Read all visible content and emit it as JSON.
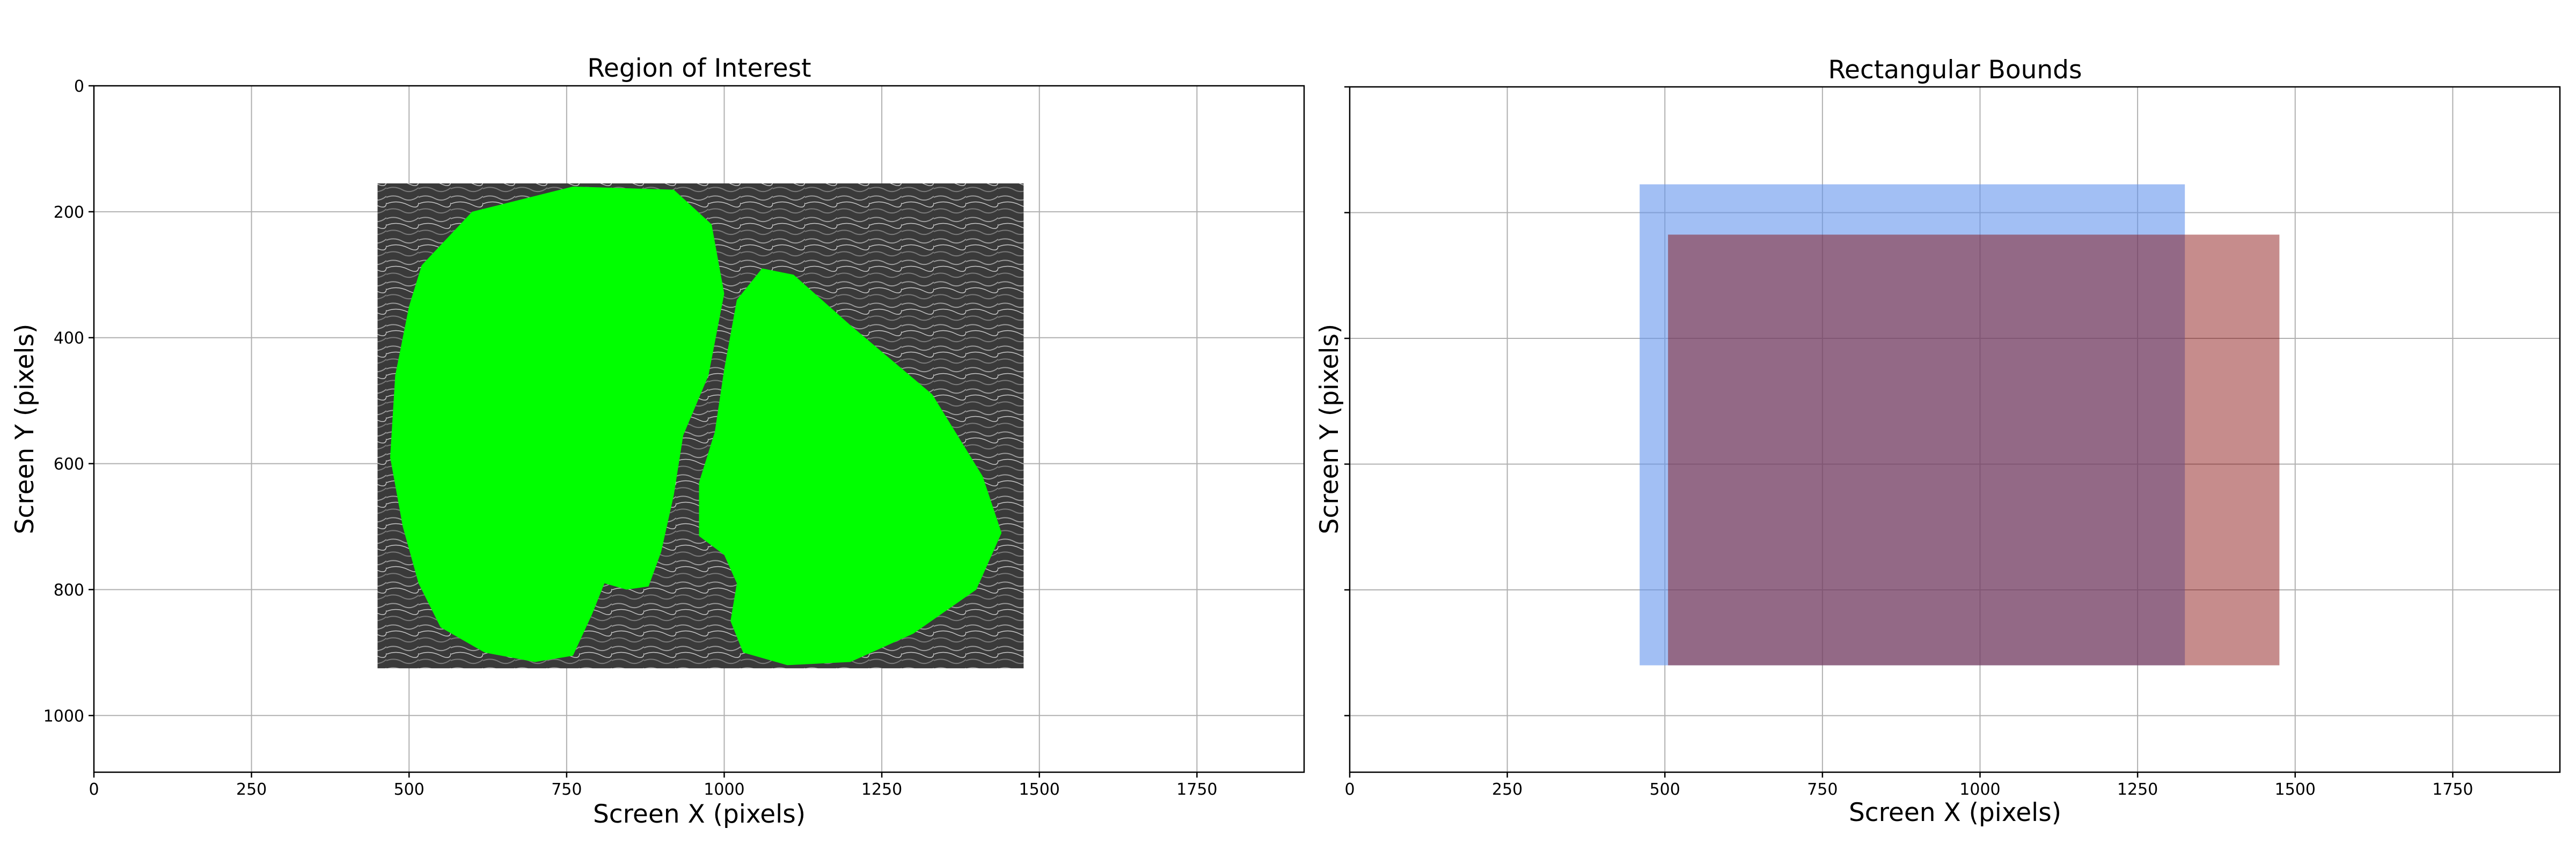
{
  "chart_data": [
    {
      "type": "image",
      "title": "Region of Interest",
      "xlabel": "Screen X (pixels)",
      "ylabel": "Screen Y (pixels)",
      "xlim": [
        0,
        1920
      ],
      "ylim": [
        1090,
        0
      ],
      "xticks": [
        0,
        250,
        500,
        750,
        1000,
        1250,
        1500,
        1750
      ],
      "yticks": [
        0,
        200,
        400,
        600,
        800,
        1000
      ],
      "grid": true,
      "image_extent": {
        "x0": 450,
        "x1": 1475,
        "y0": 155,
        "y1": 925
      },
      "mask_color": "#00ff00",
      "background_image": "grayscale hair photograph",
      "regions": [
        {
          "name": "left-region",
          "points": [
            [
              520,
              285
            ],
            [
              600,
              200
            ],
            [
              760,
              160
            ],
            [
              920,
              165
            ],
            [
              980,
              220
            ],
            [
              1000,
              330
            ],
            [
              975,
              460
            ],
            [
              935,
              555
            ],
            [
              920,
              650
            ],
            [
              900,
              740
            ],
            [
              880,
              795
            ],
            [
              845,
              800
            ],
            [
              810,
              790
            ],
            [
              790,
              840
            ],
            [
              760,
              905
            ],
            [
              700,
              915
            ],
            [
              620,
              900
            ],
            [
              550,
              860
            ],
            [
              515,
              790
            ],
            [
              490,
              700
            ],
            [
              470,
              590
            ],
            [
              478,
              460
            ],
            [
              500,
              350
            ]
          ]
        },
        {
          "name": "right-region",
          "points": [
            [
              1020,
              340
            ],
            [
              1060,
              290
            ],
            [
              1110,
              300
            ],
            [
              1200,
              380
            ],
            [
              1330,
              490
            ],
            [
              1410,
              620
            ],
            [
              1440,
              710
            ],
            [
              1400,
              800
            ],
            [
              1300,
              870
            ],
            [
              1200,
              915
            ],
            [
              1100,
              920
            ],
            [
              1030,
              900
            ],
            [
              1010,
              850
            ],
            [
              1020,
              790
            ],
            [
              1000,
              745
            ],
            [
              960,
              715
            ],
            [
              960,
              630
            ],
            [
              985,
              550
            ],
            [
              1000,
              450
            ]
          ]
        }
      ]
    },
    {
      "type": "rectangles",
      "title": "Rectangular Bounds",
      "xlabel": "Screen X (pixels)",
      "ylabel": "Screen Y (pixels)",
      "xlim": [
        0,
        1920
      ],
      "ylim": [
        1090,
        0
      ],
      "xticks": [
        0,
        250,
        500,
        750,
        1000,
        1250,
        1500,
        1750
      ],
      "yticks": [
        0,
        200,
        400,
        600,
        800,
        1000
      ],
      "show_ytick_labels": false,
      "grid": true,
      "rectangles": [
        {
          "x0": 460,
          "y0": 155,
          "x1": 1325,
          "y1": 920,
          "color": "#6495ed",
          "opacity": 0.6
        },
        {
          "x0": 505,
          "y0": 235,
          "x1": 1475,
          "y1": 920,
          "color": "#800000",
          "opacity": 0.45
        }
      ]
    }
  ]
}
